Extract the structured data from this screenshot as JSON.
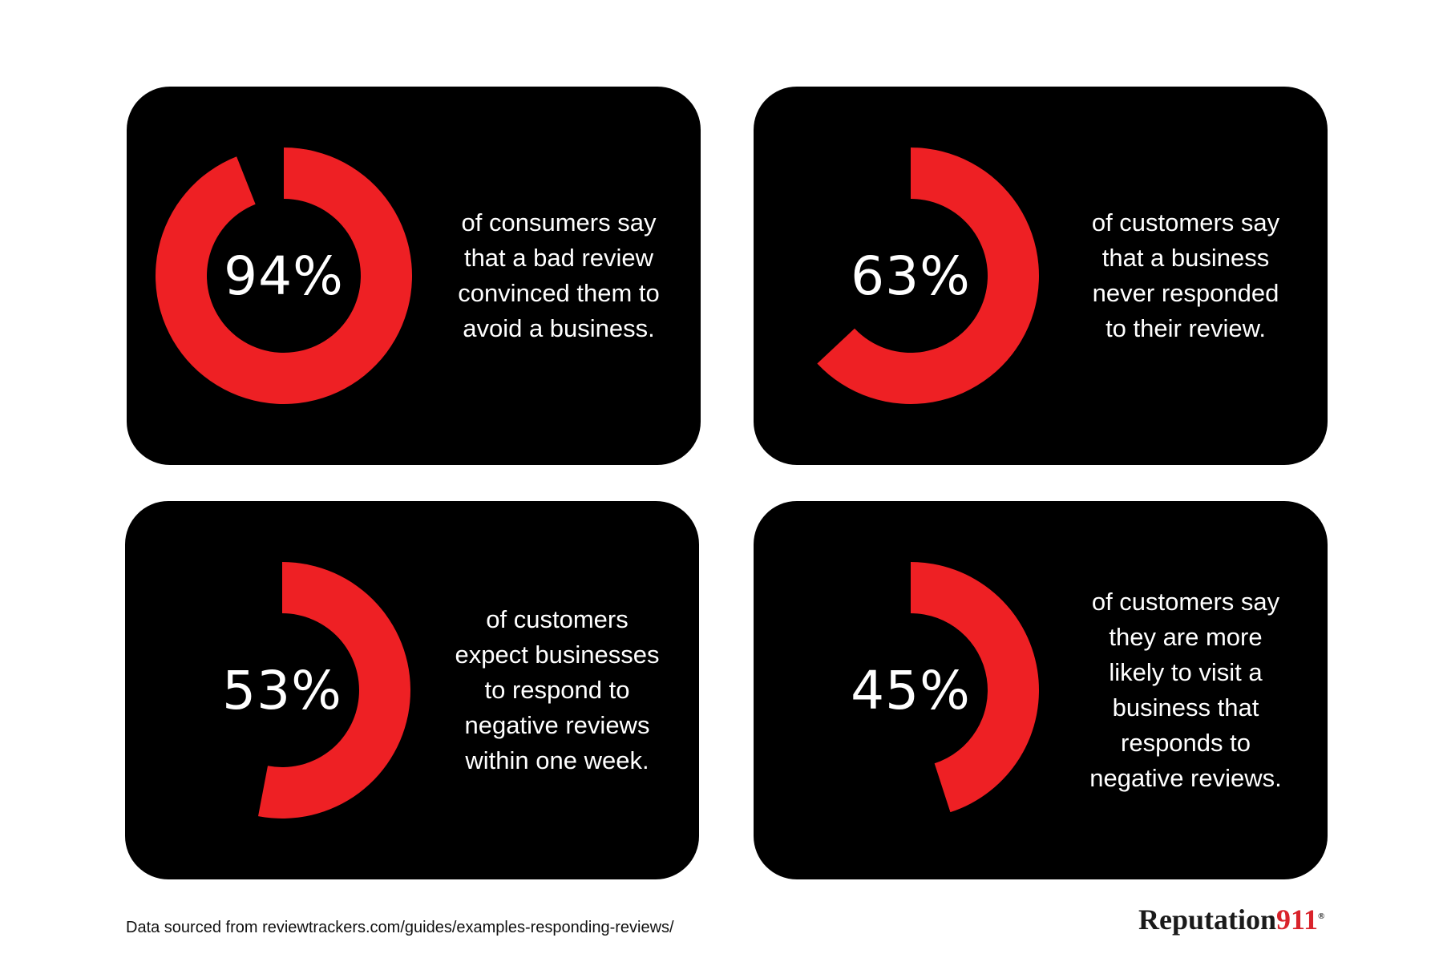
{
  "chart_data": [
    {
      "type": "donut",
      "value": 94,
      "label": "94%",
      "description": [
        "of consumers say",
        "that a bad review",
        "convinced them to",
        "avoid a business."
      ]
    },
    {
      "type": "donut",
      "value": 63,
      "label": "63%",
      "description": [
        "of customers say",
        "that a business",
        "never responded",
        "to their review."
      ]
    },
    {
      "type": "donut",
      "value": 53,
      "label": "53%",
      "description": [
        "of customers",
        "expect businesses",
        "to respond to",
        "negative reviews",
        "within one week."
      ]
    },
    {
      "type": "donut",
      "value": 45,
      "label": "45%",
      "description": [
        "of customers say",
        "they are more",
        "likely to visit a",
        "business that",
        "responds to",
        "negative reviews."
      ]
    }
  ],
  "colors": {
    "arc": "#ee2024",
    "card": "#000000",
    "text": "#ffffff",
    "brand_accent": "#d9232b"
  },
  "footer": {
    "source": "Data sourced from reviewtrackers.com/guides/examples-responding-reviews/",
    "brand_name": "Reputation",
    "brand_number": "911",
    "brand_mark": "®"
  }
}
